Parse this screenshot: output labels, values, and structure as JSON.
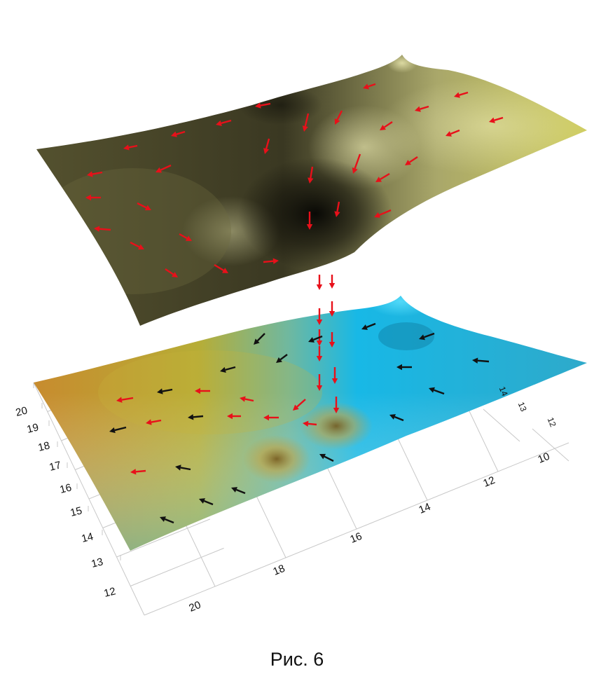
{
  "caption": "Рис. 6",
  "colors": {
    "arrow_red": "#e8101a",
    "arrow_black": "#111111",
    "upper_surface_light": "#d6d48a",
    "upper_surface_dark": "#1e1c12",
    "lower_surface_warm": "#c98d2c",
    "lower_surface_cool": "#1ab4e3",
    "grid_line": "#c8c8c8"
  },
  "axes": {
    "left_ticks": [
      "12",
      "13",
      "14",
      "15",
      "16",
      "17",
      "18",
      "19",
      "20"
    ],
    "front_ticks": [
      "20",
      "18",
      "16",
      "14",
      "12",
      "10"
    ],
    "right_ticks": [
      "14",
      "13",
      "12"
    ]
  },
  "icons": {
    "arrow": "arrow-icon"
  }
}
